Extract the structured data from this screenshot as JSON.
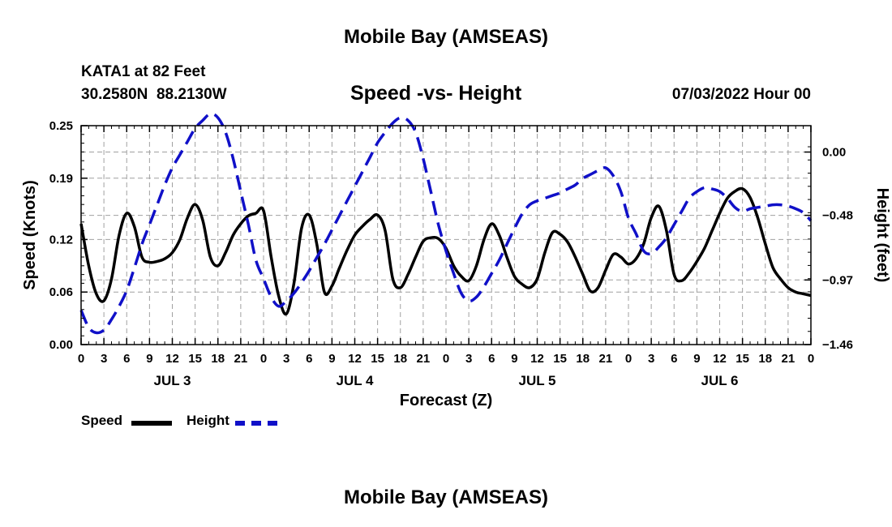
{
  "header": {
    "title": "Mobile Bay (AMSEAS)",
    "station": "KATA1 at 82 Feet",
    "coords": "30.2580N  88.2130W",
    "subtitle": "Speed -vs- Height",
    "datetime": "07/03/2022 Hour 00"
  },
  "footer": {
    "title": "Mobile Bay (AMSEAS)"
  },
  "legend": {
    "speed_label": "Speed",
    "height_label": "Height"
  },
  "colors": {
    "speed": "#000000",
    "height": "#1010c8",
    "grid": "#a0a0a0"
  },
  "chart_data": {
    "type": "line",
    "xlabel": "Forecast (Z)",
    "ylabel_left": "Speed (Knots)",
    "ylabel_right": "Height (feet)",
    "x_range_hours": [
      0,
      96
    ],
    "x_tick_hours": [
      0,
      3,
      6,
      9,
      12,
      15,
      18,
      21,
      24,
      27,
      30,
      33,
      36,
      39,
      42,
      45,
      48,
      51,
      54,
      57,
      60,
      63,
      66,
      69,
      72,
      75,
      78,
      81,
      84,
      87,
      90,
      93,
      96
    ],
    "x_tick_labels": [
      "0",
      "3",
      "6",
      "9",
      "12",
      "15",
      "18",
      "21",
      "0",
      "3",
      "6",
      "9",
      "12",
      "15",
      "18",
      "21",
      "0",
      "3",
      "6",
      "9",
      "12",
      "15",
      "18",
      "21",
      "0",
      "3",
      "6",
      "9",
      "12",
      "15",
      "18",
      "21",
      "0"
    ],
    "day_labels": [
      {
        "label": "JUL 3",
        "hour": 12
      },
      {
        "label": "JUL 4",
        "hour": 36
      },
      {
        "label": "JUL 5",
        "hour": 60
      },
      {
        "label": "JUL 6",
        "hour": 84
      }
    ],
    "y_left": {
      "min": 0.0,
      "max": 0.25,
      "ticks": [
        0.0,
        0.06,
        0.12,
        0.19,
        0.25
      ],
      "tick_labels": [
        "0.00",
        "0.06",
        "0.12",
        "0.19",
        "0.25"
      ]
    },
    "y_right": {
      "min": -1.46,
      "max": 0.2,
      "ticks": [
        -1.46,
        -0.97,
        -0.48,
        0.0
      ],
      "tick_labels": [
        "−1.46",
        "−0.97",
        "−0.48",
        "0.00"
      ]
    },
    "grid": true,
    "legend_position": "bottom-left",
    "series": [
      {
        "name": "Speed",
        "axis": "left",
        "style": "solid",
        "x": [
          0,
          1,
          2,
          3,
          4,
          5,
          6,
          7,
          8,
          9,
          10,
          11,
          12,
          13,
          14,
          15,
          16,
          17,
          18,
          19,
          20,
          21,
          22,
          23,
          24,
          25,
          26,
          27,
          28,
          29,
          30,
          31,
          32,
          33,
          34,
          35,
          36,
          37,
          38,
          39,
          40,
          41,
          42,
          43,
          44,
          45,
          46,
          47,
          48,
          49,
          50,
          51,
          52,
          53,
          54,
          55,
          56,
          57,
          58,
          59,
          60,
          61,
          62,
          63,
          64,
          65,
          66,
          67,
          68,
          69,
          70,
          71,
          72,
          73,
          74,
          75,
          76,
          77,
          78,
          79,
          80,
          81,
          82,
          83,
          84,
          85,
          86,
          87,
          88,
          89,
          90,
          91,
          92,
          93,
          94,
          95,
          96
        ],
        "y": [
          0.138,
          0.09,
          0.058,
          0.05,
          0.075,
          0.125,
          0.15,
          0.135,
          0.1,
          0.094,
          0.095,
          0.098,
          0.105,
          0.12,
          0.145,
          0.16,
          0.142,
          0.1,
          0.09,
          0.105,
          0.125,
          0.138,
          0.147,
          0.15,
          0.153,
          0.1,
          0.055,
          0.035,
          0.07,
          0.133,
          0.148,
          0.115,
          0.06,
          0.067,
          0.088,
          0.108,
          0.125,
          0.135,
          0.143,
          0.148,
          0.13,
          0.075,
          0.065,
          0.08,
          0.1,
          0.118,
          0.122,
          0.121,
          0.11,
          0.09,
          0.078,
          0.073,
          0.09,
          0.12,
          0.138,
          0.125,
          0.1,
          0.078,
          0.069,
          0.065,
          0.075,
          0.105,
          0.128,
          0.126,
          0.117,
          0.1,
          0.08,
          0.061,
          0.065,
          0.085,
          0.103,
          0.1,
          0.092,
          0.098,
          0.115,
          0.145,
          0.158,
          0.13,
          0.08,
          0.073,
          0.082,
          0.095,
          0.11,
          0.13,
          0.15,
          0.167,
          0.175,
          0.178,
          0.168,
          0.145,
          0.115,
          0.088,
          0.075,
          0.065,
          0.06,
          0.058,
          0.056
        ]
      },
      {
        "name": "Height",
        "axis": "right",
        "style": "dashed",
        "x": [
          0,
          1,
          2,
          3,
          4,
          5,
          6,
          7,
          8,
          9,
          10,
          11,
          12,
          13,
          14,
          15,
          16,
          17,
          18,
          19,
          20,
          21,
          22,
          23,
          24,
          25,
          26,
          27,
          28,
          29,
          30,
          31,
          32,
          33,
          34,
          35,
          36,
          37,
          38,
          39,
          40,
          41,
          42,
          43,
          44,
          45,
          46,
          47,
          48,
          49,
          50,
          51,
          52,
          53,
          54,
          55,
          56,
          57,
          58,
          59,
          60,
          61,
          62,
          63,
          64,
          65,
          66,
          67,
          68,
          69,
          70,
          71,
          72,
          73,
          74,
          75,
          76,
          77,
          78,
          79,
          80,
          81,
          82,
          83,
          84,
          85,
          86,
          87,
          88,
          89,
          90,
          91,
          92,
          93,
          94,
          95,
          96
        ],
        "y": [
          -1.2,
          -1.33,
          -1.37,
          -1.35,
          -1.27,
          -1.17,
          -1.05,
          -0.88,
          -0.7,
          -0.55,
          -0.4,
          -0.25,
          -0.12,
          -0.02,
          0.08,
          0.18,
          0.24,
          0.29,
          0.26,
          0.15,
          -0.05,
          -0.3,
          -0.55,
          -0.82,
          -0.96,
          -1.1,
          -1.17,
          -1.13,
          -1.07,
          -0.99,
          -0.9,
          -0.8,
          -0.7,
          -0.59,
          -0.48,
          -0.37,
          -0.26,
          -0.15,
          -0.04,
          0.07,
          0.15,
          0.22,
          0.26,
          0.24,
          0.15,
          -0.05,
          -0.3,
          -0.55,
          -0.75,
          -0.92,
          -1.07,
          -1.13,
          -1.1,
          -1.02,
          -0.92,
          -0.82,
          -0.7,
          -0.58,
          -0.47,
          -0.4,
          -0.37,
          -0.35,
          -0.33,
          -0.31,
          -0.28,
          -0.25,
          -0.2,
          -0.17,
          -0.14,
          -0.12,
          -0.18,
          -0.3,
          -0.5,
          -0.62,
          -0.75,
          -0.77,
          -0.72,
          -0.65,
          -0.55,
          -0.45,
          -0.35,
          -0.3,
          -0.27,
          -0.28,
          -0.3,
          -0.35,
          -0.42,
          -0.45,
          -0.43,
          -0.42,
          -0.41,
          -0.4,
          -0.4,
          -0.41,
          -0.43,
          -0.46,
          -0.52
        ]
      }
    ]
  }
}
